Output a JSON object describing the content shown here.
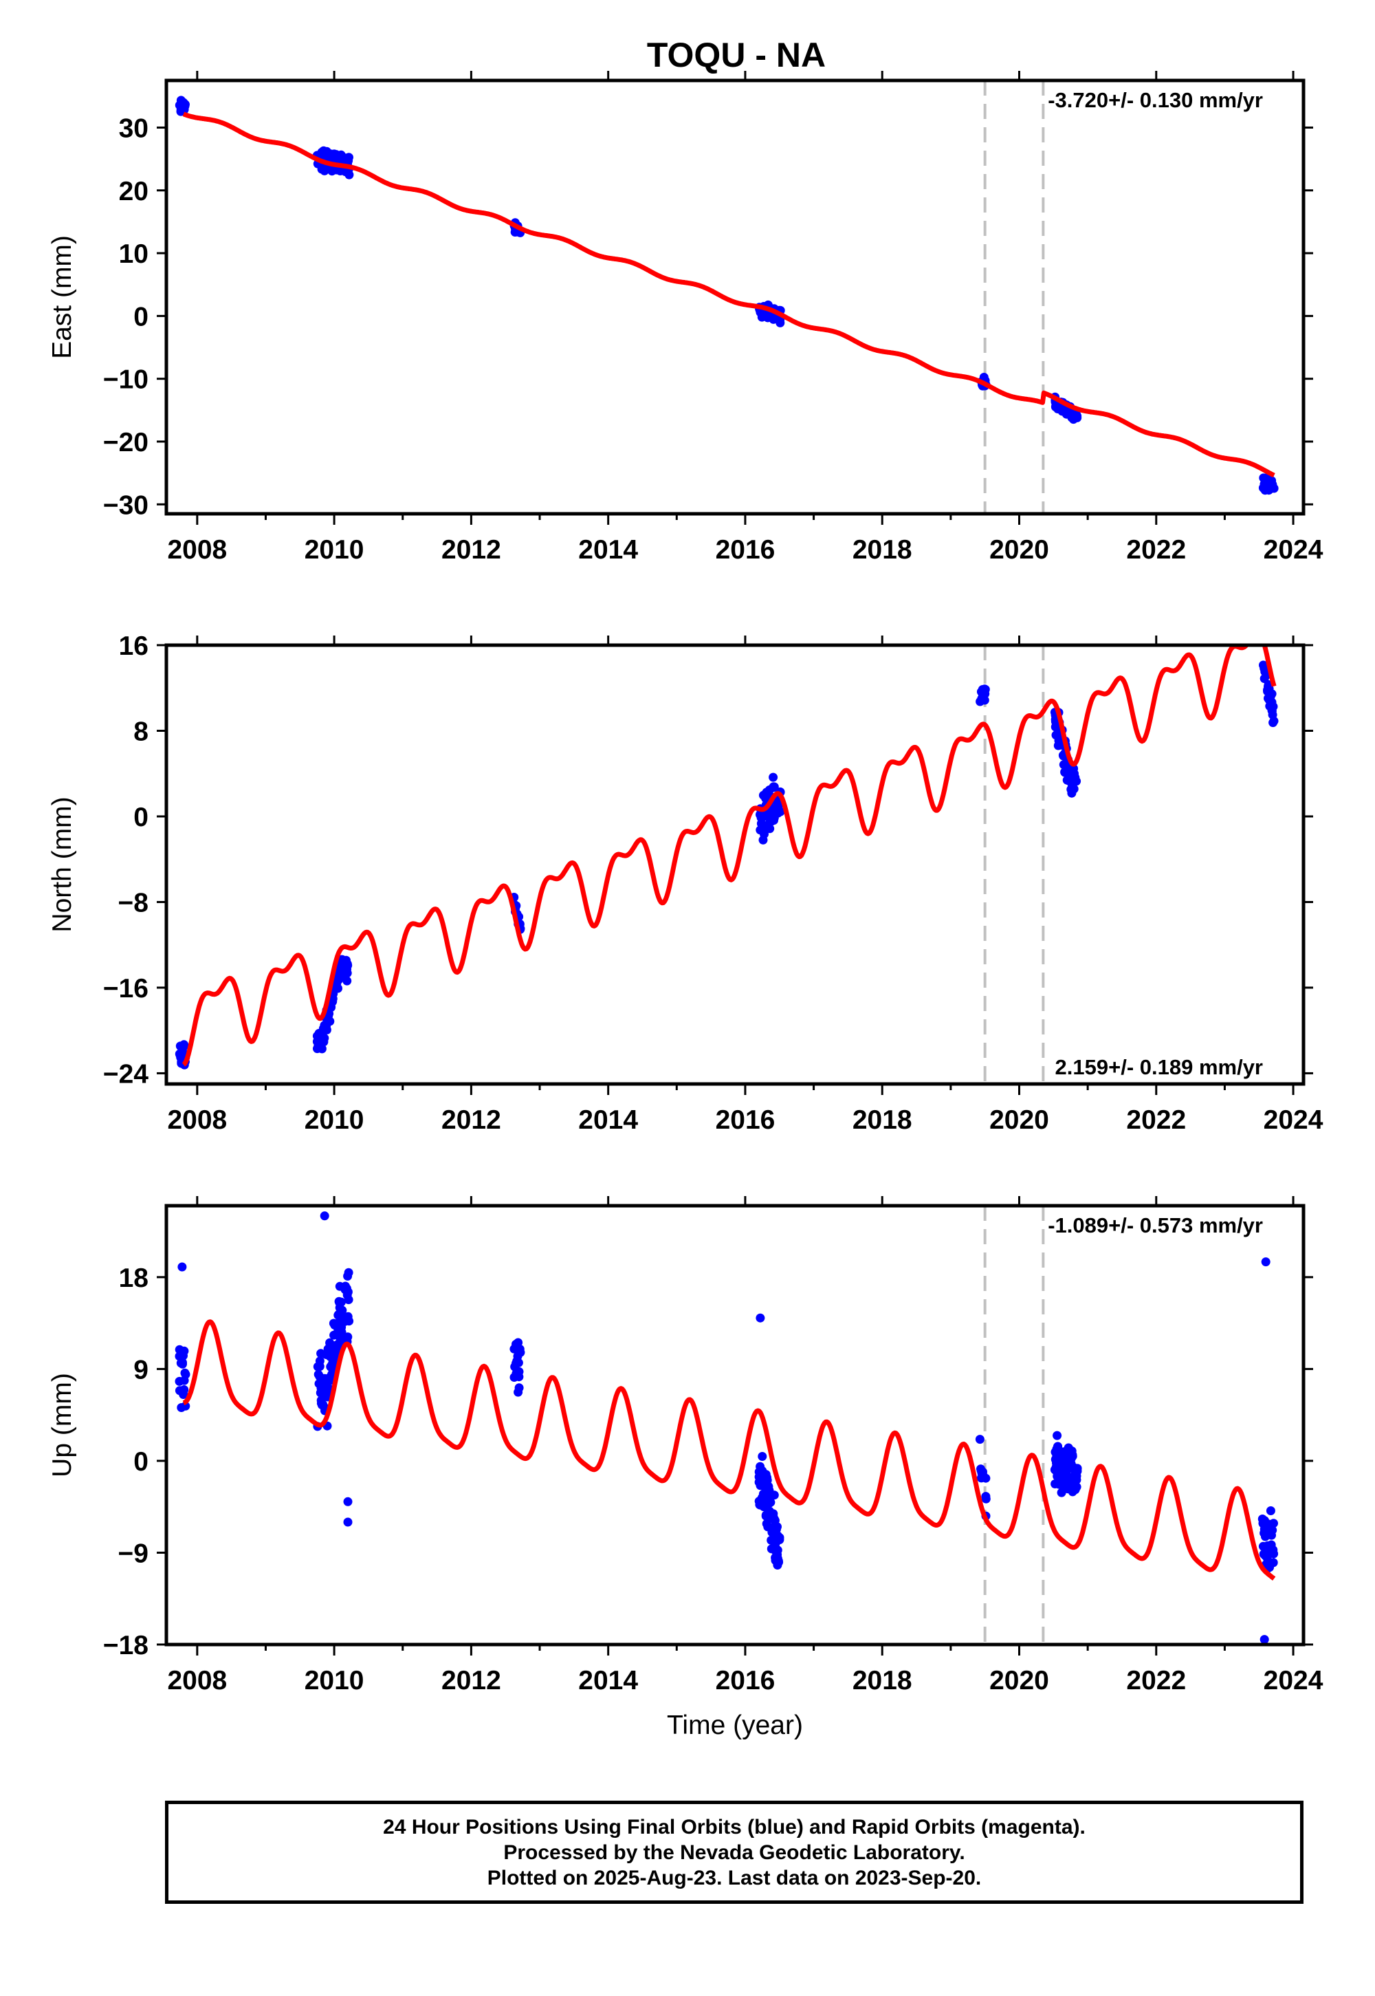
{
  "title": "TOQU - NA",
  "footer": {
    "line1": "24 Hour Positions Using Final Orbits (blue) and Rapid Orbits (magenta).",
    "line2": "Processed by the Nevada Geodetic Laboratory.",
    "line3": "Plotted on 2025-Aug-23. Last data on 2023-Sep-20."
  },
  "colors": {
    "data": "#0000ff",
    "model": "#ff0000",
    "event_line": "#c0c0c0"
  },
  "chart_data": [
    {
      "type": "scatter",
      "ylabel": "East (mm)",
      "rate_label": "-3.720+/- 0.130 mm/yr",
      "rate_position": "top-right",
      "xlim": [
        2007.55,
        2024.15
      ],
      "ylim": [
        -31.5,
        37.5
      ],
      "yticks": [
        30,
        20,
        10,
        0,
        -10,
        -20,
        -30
      ],
      "ytick_labels": [
        "30",
        "20",
        "10",
        "0",
        "−10",
        "−20",
        "−30"
      ],
      "xticks": [
        2008,
        2010,
        2012,
        2014,
        2016,
        2018,
        2020,
        2022,
        2024
      ],
      "xtick_labels": [
        "2008",
        "2010",
        "2012",
        "2014",
        "2016",
        "2018",
        "2020",
        "2022",
        "2024"
      ],
      "event_lines": [
        2019.5,
        2020.35
      ],
      "model": {
        "rate": -3.72,
        "t0": 2007.8,
        "offset": 32.5,
        "amp_sin": 0.3,
        "amp_cos": -0.2,
        "jumps": [
          {
            "t": 2020.35,
            "dy": 1.6
          }
        ]
      },
      "data_clusters": [
        {
          "start": 2007.74,
          "end": 2007.83,
          "center": 33.5,
          "spread": 1.8,
          "n": 14
        },
        {
          "start": 2009.75,
          "end": 2010.22,
          "center": 24.5,
          "spread": 2.2,
          "n": 90
        },
        {
          "start": 2012.62,
          "end": 2012.72,
          "center": 13.8,
          "spread": 1.3,
          "n": 14
        },
        {
          "start": 2016.2,
          "end": 2016.52,
          "center": 0.7,
          "spread": 1.5,
          "n": 60
        },
        {
          "start": 2019.42,
          "end": 2019.52,
          "center": -10.5,
          "spread": 1.3,
          "n": 12
        },
        {
          "start": 2020.52,
          "end": 2020.85,
          "center": -14.8,
          "spread": 1.4,
          "n": 60
        },
        {
          "start": 2023.55,
          "end": 2023.72,
          "center": -26.5,
          "spread": 1.8,
          "n": 30
        }
      ]
    },
    {
      "type": "scatter",
      "ylabel": "North (mm)",
      "rate_label": "2.159+/- 0.189 mm/yr",
      "rate_position": "bottom-right",
      "xlim": [
        2007.55,
        2024.15
      ],
      "ylim": [
        -25,
        16
      ],
      "yticks": [
        16,
        8,
        0,
        -8,
        -16,
        -24
      ],
      "ytick_labels": [
        "16",
        "8",
        "0",
        "−8",
        "−16",
        "−24"
      ],
      "xticks": [
        2008,
        2010,
        2012,
        2014,
        2016,
        2018,
        2020,
        2022,
        2024
      ],
      "xtick_labels": [
        "2008",
        "2010",
        "2012",
        "2014",
        "2016",
        "2018",
        "2020",
        "2022",
        "2024"
      ],
      "event_lines": [
        2019.5,
        2020.35
      ],
      "model": {
        "rate": 2.159,
        "t0": 2007.8,
        "offset": -19.0,
        "amp_sin": 2.6,
        "amp_cos": -1.1,
        "amp_sin2": 0.7,
        "amp_cos2": 1.2,
        "jumps": []
      },
      "data_clusters": [
        {
          "start": 2007.74,
          "end": 2007.84,
          "center": -22.3,
          "spread": 1.4,
          "n": 18
        },
        {
          "start": 2009.75,
          "end": 2010.2,
          "center": -16.8,
          "spread": 1.6,
          "n": 90
        },
        {
          "start": 2012.62,
          "end": 2012.72,
          "center": -9.2,
          "spread": 1.0,
          "n": 12
        },
        {
          "start": 2016.2,
          "end": 2016.52,
          "center": 0.5,
          "spread": 3.2,
          "n": 60
        },
        {
          "start": 2019.42,
          "end": 2019.52,
          "center": 11.3,
          "spread": 1.0,
          "n": 12
        },
        {
          "start": 2020.52,
          "end": 2020.85,
          "center": 5.0,
          "spread": 2.4,
          "n": 60
        },
        {
          "start": 2023.55,
          "end": 2023.72,
          "center": 12.0,
          "spread": 2.0,
          "n": 30
        }
      ]
    },
    {
      "type": "scatter",
      "ylabel": "Up (mm)",
      "xlabel": "Time (year)",
      "rate_label": "-1.089+/- 0.573 mm/yr",
      "rate_position": "top-right",
      "xlim": [
        2007.55,
        2024.15
      ],
      "ylim": [
        -18,
        25
      ],
      "yticks": [
        18,
        9,
        0,
        -9,
        -18
      ],
      "ytick_labels": [
        "18",
        "9",
        "0",
        "−9",
        "−18"
      ],
      "xticks": [
        2008,
        2010,
        2012,
        2014,
        2016,
        2018,
        2020,
        2022,
        2024
      ],
      "xtick_labels": [
        "2008",
        "2010",
        "2012",
        "2014",
        "2016",
        "2018",
        "2020",
        "2022",
        "2024"
      ],
      "event_lines": [
        2019.5,
        2020.35
      ],
      "model": {
        "rate": -1.089,
        "t0": 2007.8,
        "offset": 9.0,
        "amp_sin": 3.9,
        "amp_cos": 1.2,
        "amp_sin2": 0.8,
        "amp_cos2": -0.6,
        "jumps": []
      },
      "data_clusters": [
        {
          "start": 2007.74,
          "end": 2007.84,
          "center": 8.0,
          "spread": 5.0,
          "n": 20
        },
        {
          "start": 2009.75,
          "end": 2010.22,
          "center": 10.0,
          "spread": 5.5,
          "n": 100
        },
        {
          "start": 2012.62,
          "end": 2012.72,
          "center": 9.5,
          "spread": 5.0,
          "n": 18
        },
        {
          "start": 2016.2,
          "end": 2016.52,
          "center": -5.0,
          "spread": 4.5,
          "n": 80
        },
        {
          "start": 2019.42,
          "end": 2019.52,
          "center": -1.5,
          "spread": 3.5,
          "n": 12
        },
        {
          "start": 2020.52,
          "end": 2020.85,
          "center": -1.0,
          "spread": 3.5,
          "n": 80
        },
        {
          "start": 2023.55,
          "end": 2023.72,
          "center": -8.0,
          "spread": 5.0,
          "n": 30
        }
      ],
      "extra_points": [
        {
          "t": 2009.86,
          "y": 24.0
        },
        {
          "t": 2010.2,
          "y": -4.0
        },
        {
          "t": 2010.2,
          "y": -6.0
        },
        {
          "t": 2016.22,
          "y": 14.0
        },
        {
          "t": 2023.6,
          "y": 19.5
        },
        {
          "t": 2023.58,
          "y": -17.5
        },
        {
          "t": 2007.78,
          "y": 19.0
        }
      ]
    }
  ]
}
